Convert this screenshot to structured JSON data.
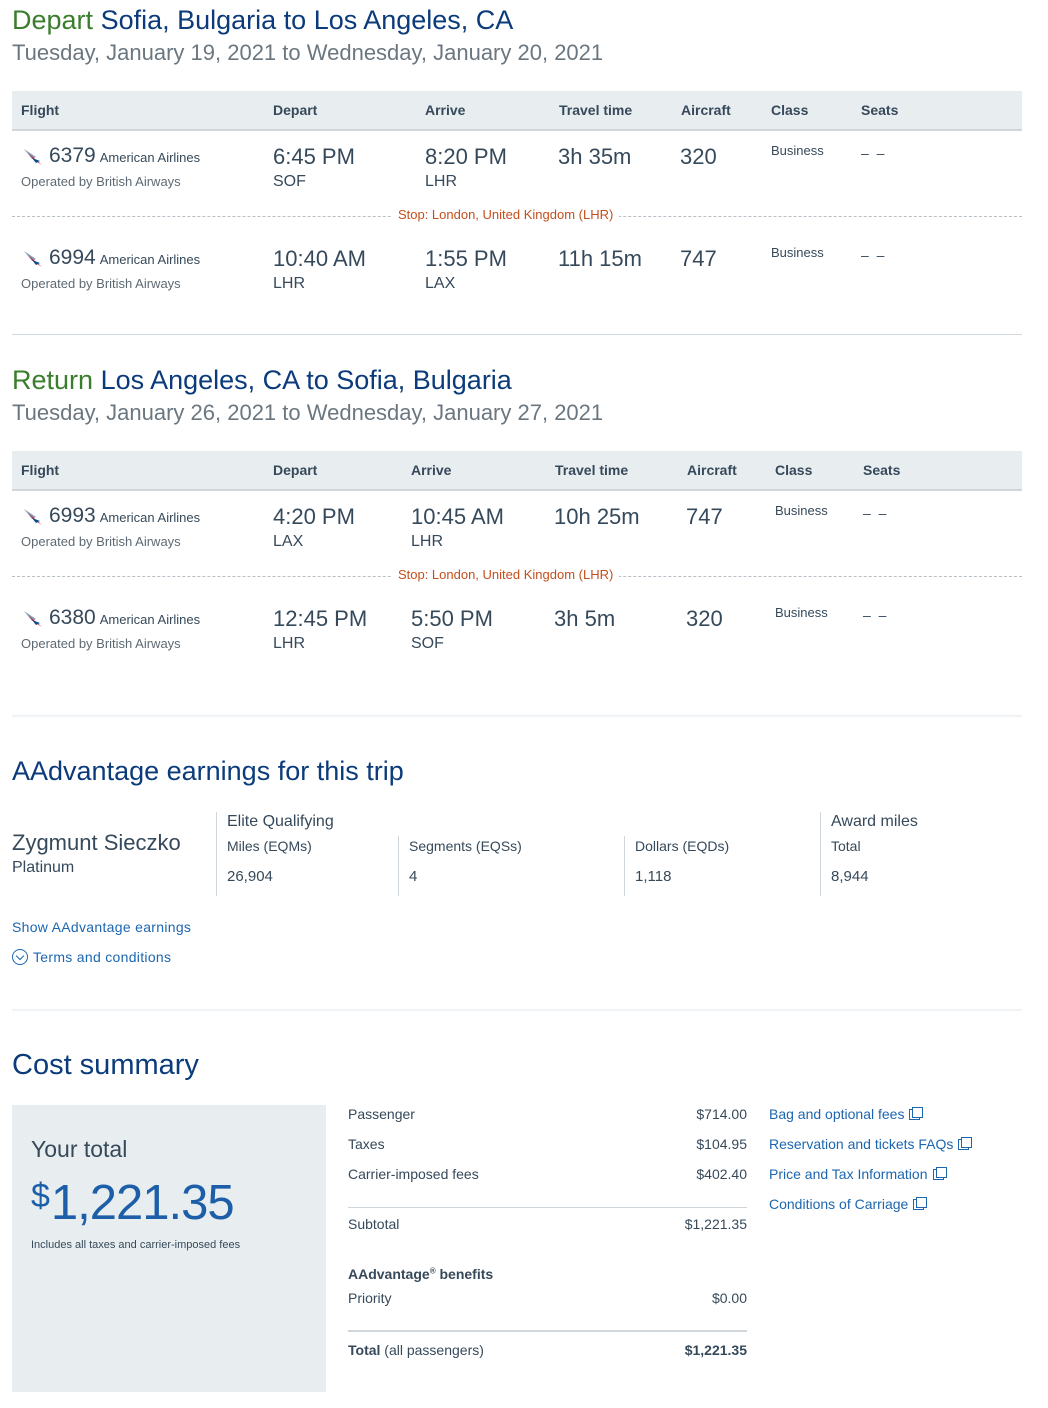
{
  "depart": {
    "label": "Depart",
    "route": "Sofia, Bulgaria to Los Angeles, CA",
    "dates": "Tuesday, January 19, 2021 to Wednesday, January 20, 2021",
    "headers": [
      "Flight",
      "Depart",
      "Arrive",
      "Travel time",
      "Aircraft",
      "Class",
      "Seats"
    ],
    "stop": "Stop: London, United Kingdom (LHR)",
    "flights": [
      {
        "number": "6379",
        "airline": "American Airlines",
        "operated": "Operated by British Airways",
        "depart_time": "6:45 PM",
        "depart_code": "SOF",
        "arrive_time": "8:20 PM",
        "arrive_code": "LHR",
        "travel": "3h 35m",
        "aircraft": "320",
        "class": "Business",
        "seats": "– –"
      },
      {
        "number": "6994",
        "airline": "American Airlines",
        "operated": "Operated by British Airways",
        "depart_time": "10:40 AM",
        "depart_code": "LHR",
        "arrive_time": "1:55 PM",
        "arrive_code": "LAX",
        "travel": "11h 15m",
        "aircraft": "747",
        "class": "Business",
        "seats": "– –"
      }
    ]
  },
  "return": {
    "label": "Return",
    "route": "Los Angeles, CA to Sofia, Bulgaria",
    "dates": "Tuesday, January 26, 2021 to Wednesday, January 27, 2021",
    "headers": [
      "Flight",
      "Depart",
      "Arrive",
      "Travel time",
      "Aircraft",
      "Class",
      "Seats"
    ],
    "stop": "Stop: London, United Kingdom (LHR)",
    "flights": [
      {
        "number": "6993",
        "airline": "American Airlines",
        "operated": "Operated by British Airways",
        "depart_time": "4:20 PM",
        "depart_code": "LAX",
        "arrive_time": "10:45 AM",
        "arrive_code": "LHR",
        "travel": "10h 25m",
        "aircraft": "747",
        "class": "Business",
        "seats": "– –"
      },
      {
        "number": "6380",
        "airline": "American Airlines",
        "operated": "Operated by British Airways",
        "depart_time": "12:45 PM",
        "depart_code": "LHR",
        "arrive_time": "5:50 PM",
        "arrive_code": "SOF",
        "travel": "3h 5m",
        "aircraft": "320",
        "class": "Business",
        "seats": "– –"
      }
    ]
  },
  "aadvantage": {
    "title": "AAdvantage earnings for this trip",
    "member_name": "Zygmunt Sieczko",
    "member_tier": "Platinum",
    "elite_heading": "Elite Qualifying",
    "miles_label": "Miles (EQMs)",
    "miles_value": "26,904",
    "segments_label": "Segments (EQSs)",
    "segments_value": "4",
    "dollars_label": "Dollars (EQDs)",
    "dollars_value": "1,118",
    "award_heading": "Award miles",
    "award_label": "Total",
    "award_value": "8,944",
    "show_link": "Show AAdvantage earnings",
    "terms_link": "Terms and conditions"
  },
  "cost": {
    "title": "Cost summary",
    "your_total_label": "Your total",
    "currency_symbol": "$",
    "total_amount": "1,221.35",
    "total_note": "Includes all taxes and carrier-imposed fees",
    "passenger_label": "Passenger",
    "passenger_amount": "$714.00",
    "taxes_label": "Taxes",
    "taxes_amount": "$104.95",
    "carrier_label": "Carrier-imposed fees",
    "carrier_amount": "$402.40",
    "subtotal_label": "Subtotal",
    "subtotal_amount": "$1,221.35",
    "benefits_label": "AAdvantage",
    "benefits_reg": "®",
    "benefits_suffix": " benefits",
    "priority_label": "Priority",
    "priority_amount": "$0.00",
    "grand_label": "Total",
    "grand_note": " (all passengers)",
    "grand_amount": "$1,221.35",
    "links": [
      "Bag and optional fees",
      "Reservation and tickets FAQs",
      "Price and Tax Information",
      "Conditions of Carriage"
    ]
  },
  "colors": {
    "brand_blue": "#0b3b7a",
    "link_blue": "#1c66b0",
    "green": "#3a7d2c",
    "stop_orange": "#c44e1b",
    "header_gray": "#e8edf0"
  }
}
